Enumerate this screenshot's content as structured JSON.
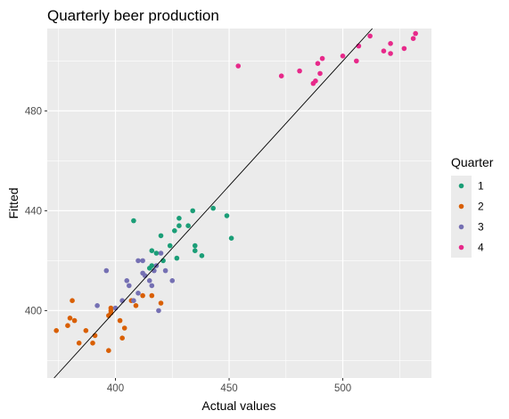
{
  "chart_data": {
    "type": "scatter",
    "title": "Quarterly beer production",
    "xlabel": "Actual values",
    "ylabel": "Fitted",
    "xlim": [
      370,
      539
    ],
    "ylim": [
      373,
      513
    ],
    "x_ticks": [
      400,
      450,
      500
    ],
    "y_ticks": [
      400,
      440,
      480
    ],
    "grid": true,
    "legend": {
      "title": "Quarter",
      "placement": "right"
    },
    "reference_line": {
      "type": "identity",
      "slope": 1,
      "intercept": 0
    },
    "series": [
      {
        "name": "1",
        "color": "#1B9E77",
        "points": [
          [
            408,
            436
          ],
          [
            420,
            430
          ],
          [
            426,
            432
          ],
          [
            432,
            434
          ],
          [
            428,
            434
          ],
          [
            434,
            440
          ],
          [
            443,
            441
          ],
          [
            449,
            438
          ],
          [
            451,
            429
          ],
          [
            438,
            422
          ],
          [
            435,
            426
          ],
          [
            435,
            424
          ],
          [
            427,
            421
          ],
          [
            424,
            426
          ],
          [
            416,
            424
          ],
          [
            418,
            423
          ],
          [
            421,
            420
          ],
          [
            416,
            418
          ],
          [
            415,
            417
          ],
          [
            428,
            437
          ]
        ]
      },
      {
        "name": "2",
        "color": "#D95F02",
        "points": [
          [
            374,
            392
          ],
          [
            379,
            394
          ],
          [
            380,
            397
          ],
          [
            381,
            404
          ],
          [
            382,
            396
          ],
          [
            384,
            387
          ],
          [
            387,
            392
          ],
          [
            390,
            387
          ],
          [
            391,
            390
          ],
          [
            397,
            398
          ],
          [
            398,
            399
          ],
          [
            398,
            400
          ],
          [
            398,
            401
          ],
          [
            397,
            384
          ],
          [
            402,
            396
          ],
          [
            403,
            389
          ],
          [
            404,
            393
          ],
          [
            407,
            404
          ],
          [
            409,
            402
          ],
          [
            412,
            406
          ],
          [
            416,
            406
          ],
          [
            420,
            403
          ]
        ]
      },
      {
        "name": "3",
        "color": "#7570B3",
        "points": [
          [
            392,
            402
          ],
          [
            396,
            416
          ],
          [
            400,
            401
          ],
          [
            403,
            404
          ],
          [
            405,
            412
          ],
          [
            406,
            410
          ],
          [
            408,
            404
          ],
          [
            410,
            407
          ],
          [
            410,
            420
          ],
          [
            412,
            415
          ],
          [
            412,
            420
          ],
          [
            413,
            414
          ],
          [
            415,
            412
          ],
          [
            416,
            410
          ],
          [
            417,
            416
          ],
          [
            418,
            418
          ],
          [
            419,
            400
          ],
          [
            420,
            423
          ],
          [
            422,
            416
          ],
          [
            425,
            412
          ]
        ]
      },
      {
        "name": "4",
        "color": "#E7298A",
        "points": [
          [
            454,
            498
          ],
          [
            473,
            494
          ],
          [
            481,
            496
          ],
          [
            487,
            491
          ],
          [
            488,
            492
          ],
          [
            489,
            499
          ],
          [
            490,
            495
          ],
          [
            491,
            501
          ],
          [
            500,
            502
          ],
          [
            506,
            500
          ],
          [
            507,
            506
          ],
          [
            512,
            510
          ],
          [
            518,
            504
          ],
          [
            521,
            507
          ],
          [
            521,
            503
          ],
          [
            527,
            505
          ],
          [
            531,
            509
          ],
          [
            532,
            511
          ]
        ]
      }
    ]
  }
}
